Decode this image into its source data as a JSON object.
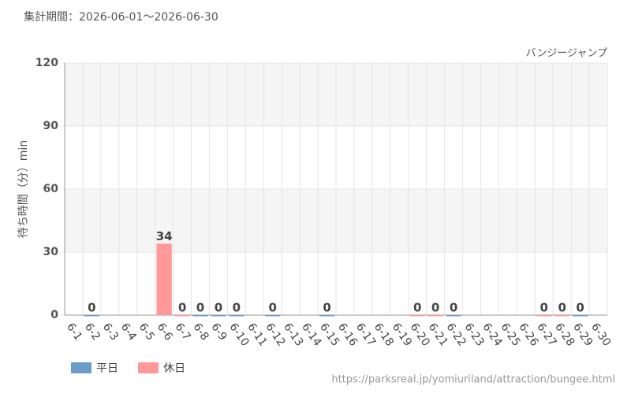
{
  "chart_data": {
    "type": "bar",
    "title": "集計期間：2026-06-01～2026-06-30",
    "subtitle": "バンジージャンプ",
    "y_label": "待ち時間（分）min",
    "source": "https://parksreal.jp/yomiuriland/attraction/bungee.html",
    "categories": [
      "6-1",
      "6-2",
      "6-3",
      "6-4",
      "6-5",
      "6-6",
      "6-7",
      "6-8",
      "6-9",
      "6-10",
      "6-11",
      "6-12",
      "6-13",
      "6-14",
      "6-15",
      "6-16",
      "6-17",
      "6-18",
      "6-19",
      "6-20",
      "6-21",
      "6-22",
      "6-23",
      "6-24",
      "6-25",
      "6-26",
      "6-27",
      "6-28",
      "6-29",
      "6-30"
    ],
    "category_label_colors": [
      "#444",
      "#444",
      "#444",
      "#444",
      "#444",
      "#ff7777",
      "#ff7777",
      "#444",
      "#444",
      "#444",
      "#444",
      "#444",
      "#ff7777",
      "#ff7777",
      "#444",
      "#444",
      "#444",
      "#444",
      "#444",
      "#ff7777",
      "#ff7777",
      "#444",
      "#444",
      "#444",
      "#444",
      "#444",
      "#ff7777",
      "#ff7777",
      "#444",
      "#444"
    ],
    "series": [
      {
        "name": "平日",
        "color": "#6a9ec8",
        "values": [
          null,
          0,
          null,
          null,
          null,
          null,
          null,
          0,
          0,
          0,
          null,
          0,
          null,
          null,
          0,
          null,
          null,
          null,
          null,
          null,
          null,
          0,
          null,
          null,
          null,
          null,
          null,
          null,
          0,
          null
        ]
      },
      {
        "name": "休日",
        "color": "#ff9999",
        "values": [
          null,
          null,
          null,
          null,
          null,
          34,
          0,
          null,
          null,
          null,
          null,
          null,
          null,
          null,
          null,
          null,
          null,
          null,
          null,
          0,
          0,
          null,
          null,
          null,
          null,
          null,
          0,
          0,
          null,
          null
        ]
      }
    ],
    "ylim": [
      0,
      120
    ],
    "yticks": [
      0,
      30,
      60,
      90,
      120
    ],
    "grid": true,
    "legend": "bottom-left"
  }
}
